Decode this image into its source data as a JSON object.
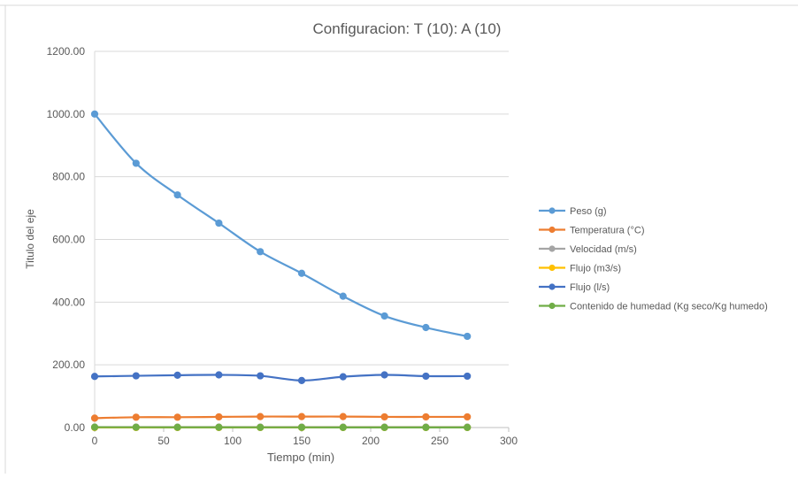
{
  "chart_data": {
    "type": "line",
    "title": "Configuracion: T (10): A (10)",
    "xlabel": "Tiempo (min)",
    "ylabel": "Titulo del eje",
    "xlim": [
      0,
      300
    ],
    "ylim": [
      0,
      1200
    ],
    "x_ticks": [
      "0",
      "50",
      "100",
      "150",
      "200",
      "250",
      "300"
    ],
    "y_ticks": [
      "0.00",
      "200.00",
      "400.00",
      "600.00",
      "800.00",
      "1000.00",
      "1200.00"
    ],
    "grid": true,
    "legend_position": "right",
    "x": [
      0,
      30,
      60,
      90,
      120,
      150,
      180,
      210,
      240,
      270
    ],
    "series": [
      {
        "name": "Peso (g)",
        "color": "#5b9bd5",
        "values": [
          1000,
          843,
          742,
          652,
          561,
          492,
          419,
          356,
          319,
          291
        ]
      },
      {
        "name": "Temperatura (°C)",
        "color": "#ed7d31",
        "values": [
          30,
          33,
          33,
          34,
          35,
          35,
          35,
          34,
          34,
          34
        ]
      },
      {
        "name": "Velocidad (m/s)",
        "color": "#a5a5a5",
        "values": [
          1.5,
          1.5,
          1.5,
          1.5,
          1.5,
          1.5,
          1.5,
          1.5,
          1.5,
          1.5
        ]
      },
      {
        "name": "Flujo (m3/s)",
        "color": "#ffc000",
        "values": [
          0.2,
          0.2,
          0.2,
          0.2,
          0.2,
          0.2,
          0.2,
          0.2,
          0.2,
          0.2
        ]
      },
      {
        "name": "Flujo (l/s)",
        "color": "#4472c4",
        "values": [
          163,
          165,
          167,
          168,
          165,
          150,
          162,
          168,
          164,
          164
        ]
      },
      {
        "name": "Contenido de humedad (Kg seco/Kg humedo)",
        "color": "#70ad47",
        "values": [
          1.0,
          0.85,
          0.75,
          0.66,
          0.57,
          0.5,
          0.43,
          0.37,
          0.33,
          0.3
        ]
      }
    ]
  }
}
